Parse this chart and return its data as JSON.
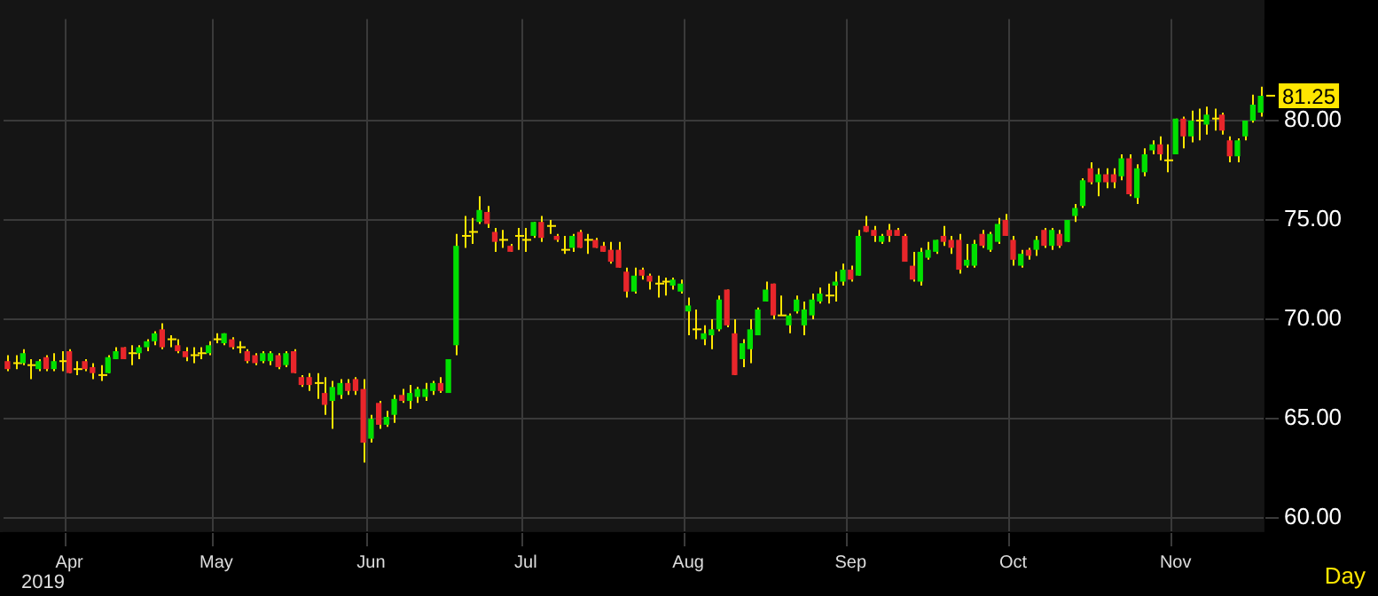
{
  "chart_data": {
    "type": "candlestick",
    "categories": [
      null,
      null,
      null,
      null,
      null,
      null,
      null,
      null,
      "Apr",
      null,
      null,
      null,
      null,
      null,
      null,
      null,
      null,
      null,
      null,
      null,
      null,
      null,
      null,
      null,
      null,
      null,
      null,
      "May",
      null,
      null,
      null,
      null,
      null,
      null,
      null,
      null,
      null,
      null,
      null,
      null,
      null,
      null,
      null,
      null,
      null,
      null,
      null,
      "Jun",
      null,
      null,
      null,
      null,
      null,
      null,
      null,
      null,
      null,
      null,
      null,
      null,
      null,
      null,
      null,
      null,
      null,
      null,
      null,
      "Jul",
      null,
      null,
      null,
      null,
      null,
      null,
      null,
      null,
      null,
      null,
      null,
      null,
      null,
      null,
      null,
      null,
      null,
      null,
      null,
      null,
      "Aug",
      null,
      null,
      null,
      null,
      null,
      null,
      null,
      null,
      null,
      null,
      null,
      null,
      null,
      null,
      null,
      null,
      null,
      null,
      null,
      null,
      "Sep",
      null,
      null,
      null,
      null,
      null,
      null,
      null,
      null,
      null,
      null,
      null,
      null,
      null,
      null,
      null,
      null,
      null,
      null,
      null,
      null,
      "Oct",
      null,
      null,
      null,
      null,
      null,
      null,
      null,
      null,
      null,
      null,
      null,
      null,
      null,
      null,
      null,
      null,
      null,
      null,
      null,
      null,
      "Nov",
      null,
      null,
      null,
      null,
      null,
      null,
      null,
      null,
      null,
      null,
      null
    ],
    "ohlc": [
      [
        67.9,
        68.2,
        67.4,
        67.5
      ],
      [
        67.8,
        68.2,
        67.5,
        67.8
      ],
      [
        67.8,
        68.5,
        67.7,
        68.3
      ],
      [
        67.7,
        68.0,
        67.0,
        67.7
      ],
      [
        67.5,
        68.0,
        67.4,
        67.9
      ],
      [
        68.1,
        68.2,
        67.4,
        67.5
      ],
      [
        67.5,
        68.3,
        67.4,
        67.9
      ],
      [
        67.9,
        68.4,
        67.4,
        67.9
      ],
      [
        68.4,
        68.5,
        67.3,
        67.3
      ],
      [
        67.5,
        67.9,
        67.2,
        67.5
      ],
      [
        67.9,
        68.0,
        67.4,
        67.5
      ],
      [
        67.6,
        67.8,
        67.0,
        67.3
      ],
      [
        67.2,
        67.7,
        66.9,
        67.2
      ],
      [
        67.3,
        68.2,
        67.3,
        68.1
      ],
      [
        68.0,
        68.6,
        68.0,
        68.4
      ],
      [
        68.6,
        68.6,
        68.0,
        68.0
      ],
      [
        68.3,
        68.7,
        67.7,
        68.3
      ],
      [
        68.3,
        68.7,
        68.0,
        68.6
      ],
      [
        68.6,
        69.0,
        68.4,
        68.9
      ],
      [
        68.9,
        69.4,
        68.7,
        69.3
      ],
      [
        69.5,
        69.8,
        68.5,
        68.6
      ],
      [
        69.0,
        69.2,
        68.6,
        69.0
      ],
      [
        68.7,
        69.0,
        68.3,
        68.4
      ],
      [
        68.4,
        68.6,
        67.9,
        68.1
      ],
      [
        68.2,
        68.6,
        67.8,
        68.2
      ],
      [
        68.3,
        68.6,
        68.0,
        68.3
      ],
      [
        68.3,
        68.9,
        68.2,
        68.7
      ],
      [
        69.0,
        69.3,
        68.8,
        69.0
      ],
      [
        68.8,
        69.3,
        68.7,
        69.3
      ],
      [
        69.0,
        69.1,
        68.5,
        68.6
      ],
      [
        68.6,
        68.9,
        68.3,
        68.6
      ],
      [
        68.4,
        68.5,
        67.8,
        67.9
      ],
      [
        68.2,
        68.3,
        67.7,
        67.8
      ],
      [
        67.9,
        68.4,
        67.8,
        68.3
      ],
      [
        67.9,
        68.4,
        67.7,
        68.3
      ],
      [
        68.2,
        68.3,
        67.5,
        67.6
      ],
      [
        67.7,
        68.4,
        67.6,
        68.3
      ],
      [
        68.4,
        68.5,
        67.3,
        67.3
      ],
      [
        67.1,
        67.2,
        66.6,
        66.7
      ],
      [
        67.1,
        67.3,
        66.4,
        66.7
      ],
      [
        66.8,
        67.3,
        66.0,
        66.8
      ],
      [
        66.3,
        67.1,
        65.2,
        65.7
      ],
      [
        65.9,
        66.9,
        64.5,
        66.6
      ],
      [
        66.2,
        67.0,
        66.0,
        66.8
      ],
      [
        66.8,
        67.0,
        66.2,
        66.4
      ],
      [
        67.0,
        67.1,
        66.2,
        66.4
      ],
      [
        66.5,
        67.0,
        62.8,
        63.8
      ],
      [
        64.0,
        65.2,
        63.8,
        65.0
      ],
      [
        65.8,
        65.9,
        64.5,
        64.7
      ],
      [
        64.7,
        65.4,
        64.6,
        65.1
      ],
      [
        65.2,
        66.2,
        64.8,
        66.0
      ],
      [
        66.2,
        66.5,
        65.8,
        65.9
      ],
      [
        65.9,
        66.7,
        65.5,
        66.3
      ],
      [
        66.1,
        66.6,
        65.8,
        66.5
      ],
      [
        66.1,
        66.8,
        65.9,
        66.5
      ],
      [
        66.4,
        66.9,
        66.2,
        66.8
      ],
      [
        66.8,
        67.1,
        66.3,
        66.4
      ],
      [
        66.3,
        68.0,
        66.3,
        68.0
      ],
      [
        68.7,
        74.3,
        68.2,
        73.7
      ],
      [
        74.2,
        75.2,
        73.6,
        74.2
      ],
      [
        74.4,
        75.1,
        73.8,
        74.4
      ],
      [
        74.9,
        76.2,
        74.8,
        75.5
      ],
      [
        75.4,
        75.7,
        74.6,
        74.8
      ],
      [
        74.4,
        74.6,
        73.4,
        73.9
      ],
      [
        74.0,
        74.5,
        73.6,
        74.0
      ],
      [
        73.7,
        73.8,
        73.4,
        73.4
      ],
      [
        74.2,
        74.6,
        73.5,
        74.2
      ],
      [
        74.0,
        74.6,
        73.4,
        74.0
      ],
      [
        74.2,
        74.9,
        74.1,
        74.9
      ],
      [
        74.9,
        75.2,
        73.9,
        74.1
      ],
      [
        74.7,
        75.0,
        74.3,
        74.7
      ],
      [
        74.2,
        74.3,
        73.9,
        74.0
      ],
      [
        73.5,
        74.2,
        73.3,
        73.5
      ],
      [
        73.6,
        74.3,
        73.4,
        74.2
      ],
      [
        74.4,
        74.5,
        73.6,
        73.6
      ],
      [
        74.0,
        74.3,
        73.3,
        74.0
      ],
      [
        74.0,
        74.1,
        73.6,
        73.6
      ],
      [
        73.7,
        73.9,
        73.4,
        73.4
      ],
      [
        73.5,
        73.9,
        72.8,
        72.9
      ],
      [
        73.5,
        73.9,
        72.6,
        72.6
      ],
      [
        72.4,
        72.6,
        71.1,
        71.4
      ],
      [
        71.4,
        72.6,
        71.3,
        72.2
      ],
      [
        72.5,
        72.6,
        72.0,
        72.2
      ],
      [
        72.2,
        72.3,
        71.5,
        71.9
      ],
      [
        71.8,
        72.2,
        71.1,
        71.8
      ],
      [
        71.9,
        72.1,
        71.2,
        71.9
      ],
      [
        71.7,
        72.1,
        71.5,
        72.0
      ],
      [
        71.4,
        72.0,
        71.3,
        71.8
      ],
      [
        70.4,
        71.1,
        69.2,
        70.7
      ],
      [
        69.5,
        70.5,
        69.0,
        69.5
      ],
      [
        69.0,
        69.7,
        68.7,
        69.3
      ],
      [
        69.2,
        70.0,
        68.5,
        69.5
      ],
      [
        69.5,
        71.2,
        69.4,
        71.0
      ],
      [
        71.5,
        71.5,
        69.6,
        69.7
      ],
      [
        69.3,
        70.0,
        67.2,
        67.2
      ],
      [
        68.0,
        69.0,
        67.6,
        68.8
      ],
      [
        68.5,
        70.0,
        67.8,
        69.5
      ],
      [
        69.2,
        70.6,
        69.2,
        70.5
      ],
      [
        70.9,
        71.9,
        70.9,
        71.5
      ],
      [
        71.8,
        71.8,
        70.0,
        70.2
      ],
      [
        70.2,
        71.2,
        70.2,
        70.2
      ],
      [
        69.7,
        70.3,
        69.3,
        70.2
      ],
      [
        70.4,
        71.2,
        70.3,
        71.0
      ],
      [
        69.7,
        70.9,
        69.2,
        70.5
      ],
      [
        70.2,
        71.3,
        70.0,
        71.0
      ],
      [
        70.9,
        71.6,
        70.8,
        71.3
      ],
      [
        71.2,
        71.8,
        70.8,
        71.2
      ],
      [
        71.7,
        72.4,
        70.9,
        71.9
      ],
      [
        71.9,
        72.8,
        71.7,
        72.5
      ],
      [
        72.5,
        72.7,
        71.9,
        72.0
      ],
      [
        72.2,
        74.5,
        72.2,
        74.2
      ],
      [
        74.7,
        75.2,
        74.4,
        74.4
      ],
      [
        74.5,
        74.7,
        73.9,
        74.2
      ],
      [
        73.9,
        74.3,
        73.8,
        74.2
      ],
      [
        74.5,
        74.8,
        73.9,
        74.2
      ],
      [
        74.5,
        74.6,
        74.2,
        74.2
      ],
      [
        74.2,
        74.3,
        72.9,
        72.9
      ],
      [
        72.7,
        73.4,
        71.9,
        72.0
      ],
      [
        71.9,
        73.6,
        71.7,
        73.4
      ],
      [
        73.1,
        73.9,
        73.0,
        73.5
      ],
      [
        73.4,
        74.0,
        73.3,
        74.0
      ],
      [
        74.2,
        74.7,
        73.7,
        73.9
      ],
      [
        74.0,
        74.2,
        73.3,
        73.6
      ],
      [
        74.0,
        74.3,
        72.3,
        72.5
      ],
      [
        72.7,
        73.8,
        72.6,
        73.0
      ],
      [
        72.7,
        74.0,
        72.6,
        73.8
      ],
      [
        74.3,
        74.5,
        73.6,
        73.7
      ],
      [
        73.5,
        74.4,
        73.4,
        74.3
      ],
      [
        73.9,
        75.1,
        73.8,
        74.8
      ],
      [
        75.0,
        75.3,
        74.2,
        74.2
      ],
      [
        74.0,
        74.2,
        72.7,
        73.0
      ],
      [
        72.7,
        73.5,
        72.6,
        73.3
      ],
      [
        73.5,
        73.6,
        73.0,
        73.2
      ],
      [
        73.5,
        74.2,
        73.2,
        74.0
      ],
      [
        74.5,
        74.6,
        73.6,
        73.7
      ],
      [
        73.7,
        74.6,
        73.5,
        74.5
      ],
      [
        74.3,
        74.5,
        73.6,
        73.7
      ],
      [
        73.9,
        75.0,
        73.9,
        75.0
      ],
      [
        75.2,
        75.8,
        74.9,
        75.6
      ],
      [
        75.7,
        77.1,
        75.6,
        77.0
      ],
      [
        77.6,
        77.9,
        76.8,
        76.9
      ],
      [
        76.9,
        77.6,
        76.2,
        77.3
      ],
      [
        77.3,
        77.6,
        76.6,
        76.9
      ],
      [
        77.3,
        77.6,
        76.6,
        76.9
      ],
      [
        77.2,
        78.3,
        77.0,
        78.1
      ],
      [
        78.1,
        78.3,
        76.2,
        76.3
      ],
      [
        76.1,
        77.8,
        75.8,
        77.6
      ],
      [
        77.4,
        78.6,
        77.2,
        78.3
      ],
      [
        78.5,
        79.0,
        78.3,
        78.8
      ],
      [
        78.8,
        79.2,
        78.0,
        78.3
      ],
      [
        78.0,
        78.8,
        77.4,
        78.0
      ],
      [
        78.3,
        80.1,
        78.3,
        80.1
      ],
      [
        80.1,
        80.2,
        78.6,
        79.2
      ],
      [
        79.2,
        80.5,
        78.9,
        80.0
      ],
      [
        80.0,
        80.6,
        79.0,
        80.0
      ],
      [
        79.8,
        80.7,
        79.3,
        80.3
      ],
      [
        80.1,
        80.6,
        79.5,
        80.1
      ],
      [
        80.3,
        80.4,
        79.3,
        79.5
      ],
      [
        79.0,
        79.2,
        77.9,
        78.2
      ],
      [
        78.2,
        79.1,
        77.9,
        79.0
      ],
      [
        79.2,
        80.0,
        79.0,
        80.0
      ],
      [
        80.0,
        81.3,
        79.9,
        80.8
      ],
      [
        80.4,
        81.7,
        80.2,
        81.25
      ]
    ],
    "colors": [
      "#e8262b",
      "#ffe600",
      "#00e000",
      "#ffe600",
      "#00e000",
      "#e8262b",
      "#00e000",
      "#ffe600",
      "#e8262b",
      "#ffe600",
      "#e8262b",
      "#e8262b",
      "#ffe600",
      "#00e000",
      "#00e000",
      "#e8262b",
      "#ffe600",
      "#00e000",
      "#00e000",
      "#00e000",
      "#e8262b",
      "#ffe600",
      "#e8262b",
      "#e8262b",
      "#ffe600",
      "#ffe600",
      "#00e000",
      "#ffe600",
      "#00e000",
      "#e8262b",
      "#ffe600",
      "#e8262b",
      "#e8262b",
      "#00e000",
      "#00e000",
      "#e8262b",
      "#00e000",
      "#e8262b",
      "#e8262b",
      "#e8262b",
      "#ffe600",
      "#e8262b",
      "#00e000",
      "#00e000",
      "#e8262b",
      "#e8262b",
      "#e8262b",
      "#00e000",
      "#e8262b",
      "#00e000",
      "#00e000",
      "#e8262b",
      "#00e000",
      "#00e000",
      "#00e000",
      "#00e000",
      "#e8262b",
      "#00e000",
      "#00e000",
      "#ffe600",
      "#ffe600",
      "#00e000",
      "#e8262b",
      "#e8262b",
      "#ffe600",
      "#e8262b",
      "#ffe600",
      "#ffe600",
      "#00e000",
      "#e8262b",
      "#ffe600",
      "#e8262b",
      "#ffe600",
      "#00e000",
      "#e8262b",
      "#ffe600",
      "#e8262b",
      "#e8262b",
      "#e8262b",
      "#e8262b",
      "#e8262b",
      "#00e000",
      "#e8262b",
      "#e8262b",
      "#ffe600",
      "#ffe600",
      "#00e000",
      "#00e000",
      "#00e000",
      "#ffe600",
      "#00e000",
      "#00e000",
      "#00e000",
      "#e8262b",
      "#e8262b",
      "#00e000",
      "#00e000",
      "#00e000",
      "#00e000",
      "#e8262b",
      "#ffe600",
      "#00e000",
      "#00e000",
      "#00e000",
      "#00e000",
      "#00e000",
      "#ffe600",
      "#00e000",
      "#00e000",
      "#e8262b",
      "#00e000",
      "#e8262b",
      "#e8262b",
      "#00e000",
      "#e8262b",
      "#e8262b",
      "#e8262b",
      "#e8262b",
      "#00e000",
      "#00e000",
      "#00e000",
      "#e8262b",
      "#e8262b",
      "#e8262b",
      "#00e000",
      "#00e000",
      "#e8262b",
      "#00e000",
      "#00e000",
      "#e8262b",
      "#e8262b",
      "#00e000",
      "#e8262b",
      "#00e000",
      "#e8262b",
      "#00e000",
      "#e8262b",
      "#00e000",
      "#00e000",
      "#00e000",
      "#e8262b",
      "#00e000",
      "#e8262b",
      "#e8262b",
      "#00e000",
      "#e8262b",
      "#00e000",
      "#00e000",
      "#00e000",
      "#e8262b",
      "#ffe600",
      "#00e000",
      "#e8262b",
      "#00e000",
      "#ffe600",
      "#00e000",
      "#ffe600",
      "#e8262b",
      "#e8262b",
      "#00e000",
      "#00e000",
      "#00e000",
      "#00e000"
    ],
    "ylim": [
      59.3,
      85.1
    ],
    "yticks": [
      {
        "value": 60,
        "label": "60.00"
      },
      {
        "value": 65,
        "label": "65.00"
      },
      {
        "value": 70,
        "label": "70.00"
      },
      {
        "value": 75,
        "label": "75.00"
      },
      {
        "value": 80,
        "label": "80.00"
      }
    ],
    "grid": true,
    "annotations": [
      "81.25",
      "2019",
      "Day"
    ]
  }
}
